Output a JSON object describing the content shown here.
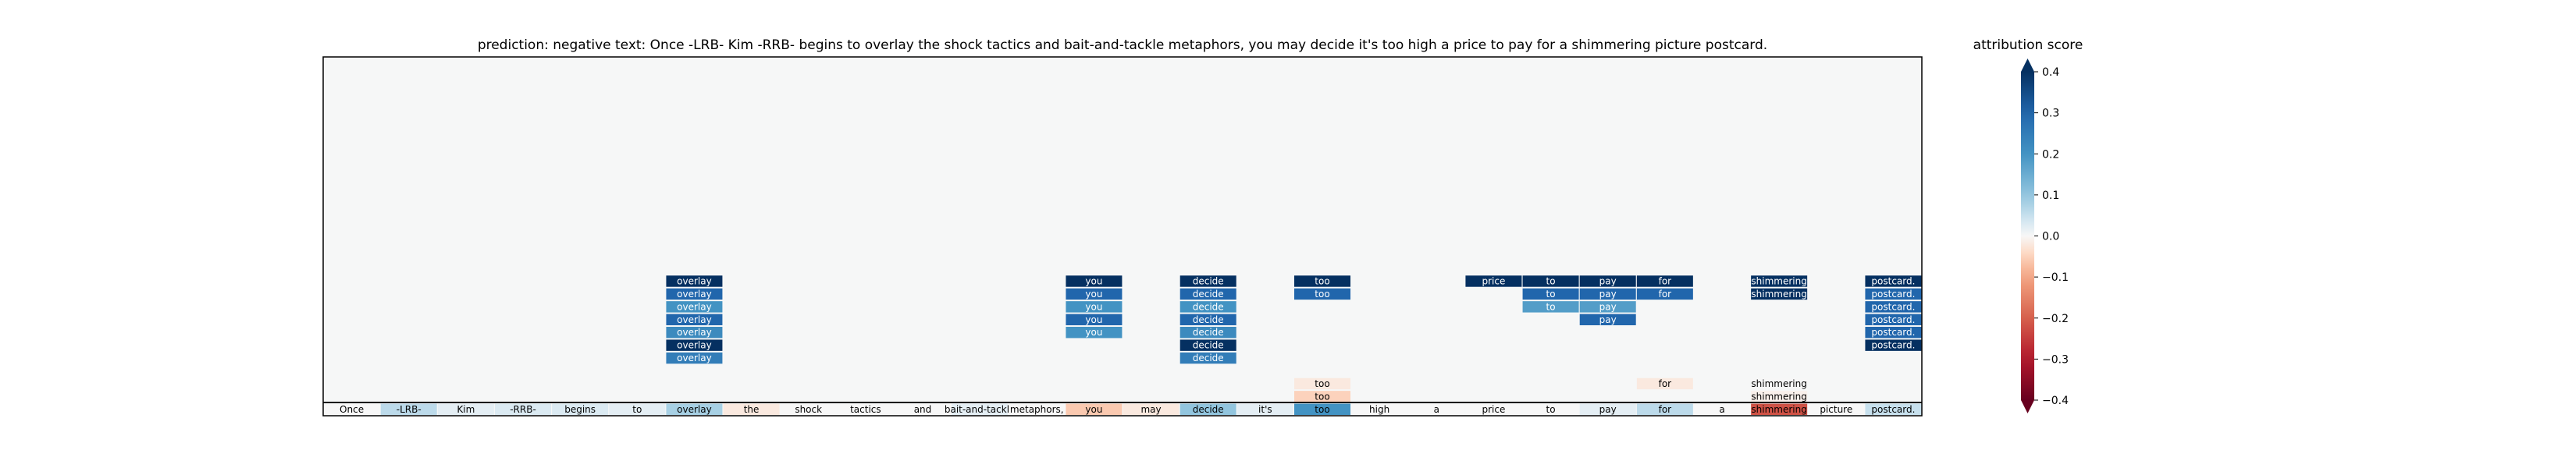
{
  "chart_data": {
    "type": "heatmap",
    "title": "prediction:  negative     text:  Once -LRB- Kim -RRB- begins to overlay the shock tactics and bait-and-tackle metaphors, you may decide it's too high a price to pay for a shimmering picture postcard.",
    "tokens": [
      "Once",
      "-LRB-",
      "Kim",
      "-RRB-",
      "begins",
      "to",
      "overlay",
      "the",
      "shock",
      "tactics",
      "and",
      "bait-and-tackle",
      "metaphors,",
      "you",
      "may",
      "decide",
      "it's",
      "too",
      "high",
      "a",
      "price",
      "to",
      "pay",
      "for",
      "a",
      "shimmering",
      "picture",
      "postcard."
    ],
    "base_scores": [
      0.0,
      0.06,
      0.02,
      0.03,
      0.03,
      0.02,
      0.08,
      -0.02,
      0.0,
      0.0,
      0.0,
      0.02,
      0.0,
      -0.06,
      -0.02,
      0.1,
      0.02,
      0.2,
      0.0,
      0.0,
      0.0,
      0.0,
      0.02,
      0.06,
      0.0,
      -0.22,
      0.0,
      0.05
    ],
    "stack_rows": 28,
    "cells": [
      {
        "t": 6,
        "r": 9,
        "v": 0.4
      },
      {
        "t": 6,
        "r": 8,
        "v": 0.3
      },
      {
        "t": 6,
        "r": 7,
        "v": 0.2
      },
      {
        "t": 6,
        "r": 6,
        "v": 0.3
      },
      {
        "t": 6,
        "r": 5,
        "v": 0.22
      },
      {
        "t": 6,
        "r": 4,
        "v": 0.42
      },
      {
        "t": 6,
        "r": 3,
        "v": 0.25
      },
      {
        "t": 13,
        "r": 9,
        "v": 0.4
      },
      {
        "t": 13,
        "r": 8,
        "v": 0.3
      },
      {
        "t": 13,
        "r": 7,
        "v": 0.2
      },
      {
        "t": 13,
        "r": 6,
        "v": 0.3
      },
      {
        "t": 13,
        "r": 5,
        "v": 0.2
      },
      {
        "t": 15,
        "r": 9,
        "v": 0.4
      },
      {
        "t": 15,
        "r": 8,
        "v": 0.3
      },
      {
        "t": 15,
        "r": 7,
        "v": 0.2
      },
      {
        "t": 15,
        "r": 6,
        "v": 0.3
      },
      {
        "t": 15,
        "r": 5,
        "v": 0.22
      },
      {
        "t": 15,
        "r": 4,
        "v": 0.42
      },
      {
        "t": 15,
        "r": 3,
        "v": 0.25
      },
      {
        "t": 17,
        "r": 9,
        "v": 0.42
      },
      {
        "t": 17,
        "r": 8,
        "v": 0.3
      },
      {
        "t": 17,
        "r": 1,
        "v": -0.02
      },
      {
        "t": 17,
        "r": 0,
        "v": -0.05
      },
      {
        "t": 20,
        "r": 9,
        "v": 0.42
      },
      {
        "t": 21,
        "r": 9,
        "v": 0.4
      },
      {
        "t": 21,
        "r": 8,
        "v": 0.3
      },
      {
        "t": 21,
        "r": 7,
        "v": 0.18
      },
      {
        "t": 22,
        "r": 9,
        "v": 0.4
      },
      {
        "t": 22,
        "r": 8,
        "v": 0.3
      },
      {
        "t": 22,
        "r": 7,
        "v": 0.18
      },
      {
        "t": 22,
        "r": 6,
        "v": 0.3
      },
      {
        "t": 23,
        "r": 9,
        "v": 0.4
      },
      {
        "t": 23,
        "r": 8,
        "v": 0.3
      },
      {
        "t": 23,
        "r": 1,
        "v": -0.02
      },
      {
        "t": 25,
        "r": 9,
        "v": 0.4
      },
      {
        "t": 25,
        "r": 8,
        "v": 0.4
      },
      {
        "t": 25,
        "r": 1,
        "v": 0.0
      },
      {
        "t": 25,
        "r": 0,
        "v": -0.01
      },
      {
        "t": 27,
        "r": 9,
        "v": 0.4
      },
      {
        "t": 27,
        "r": 8,
        "v": 0.3
      },
      {
        "t": 27,
        "r": 7,
        "v": 0.3
      },
      {
        "t": 27,
        "r": 6,
        "v": 0.3
      },
      {
        "t": 27,
        "r": 5,
        "v": 0.3
      },
      {
        "t": 27,
        "r": 4,
        "v": 0.42
      }
    ],
    "colorbar": {
      "label": "attribution score",
      "range": [
        -0.4,
        0.4
      ],
      "ticks": [
        "0.4",
        "0.3",
        "0.2",
        "0.1",
        "0.0",
        "−0.1",
        "−0.2",
        "−0.3",
        "−0.4"
      ],
      "colormap": "RdBu"
    }
  }
}
